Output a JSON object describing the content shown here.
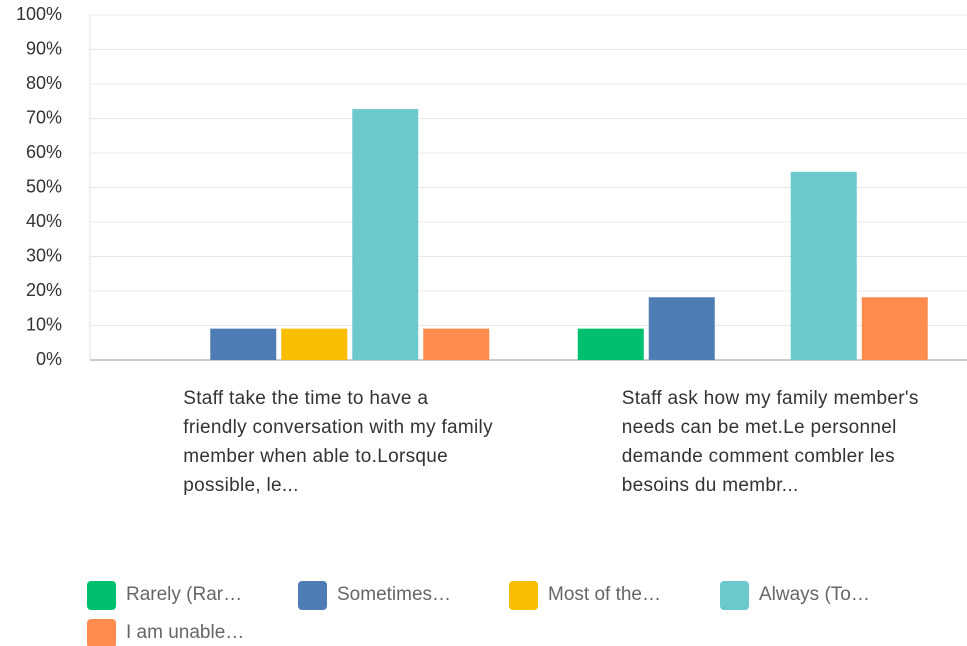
{
  "chart_data": {
    "type": "bar",
    "categories": [
      "Staff take the time to have a friendly conversation with my family member when able to.Lorsque possible, le...",
      "Staff ask how my family member's needs can be met.Le personnel demande comment combler les besoins du membr..."
    ],
    "series": [
      {
        "name": "Rarely (Rar…",
        "color": "#00bf6f",
        "values": [
          0,
          9.09
        ]
      },
      {
        "name": "Sometimes…",
        "color": "#507cb6",
        "values": [
          9.09,
          18.18
        ]
      },
      {
        "name": "Most of the…",
        "color": "#f9be00",
        "values": [
          9.09,
          0
        ]
      },
      {
        "name": "Always (To…",
        "color": "#6bc8cd",
        "values": [
          72.73,
          54.55
        ]
      },
      {
        "name": "I am unable…",
        "color": "#ff8b4f",
        "values": [
          9.09,
          18.18
        ]
      }
    ],
    "ylim": [
      0,
      100
    ],
    "yticks": [
      {
        "value": 0,
        "label": "0%"
      },
      {
        "value": 10,
        "label": "10%"
      },
      {
        "value": 20,
        "label": "20%"
      },
      {
        "value": 30,
        "label": "30%"
      },
      {
        "value": 40,
        "label": "40%"
      },
      {
        "value": 50,
        "label": "50%"
      },
      {
        "value": 60,
        "label": "60%"
      },
      {
        "value": 70,
        "label": "70%"
      },
      {
        "value": 80,
        "label": "80%"
      },
      {
        "value": 90,
        "label": "90%"
      },
      {
        "value": 100,
        "label": "100%"
      }
    ],
    "grid": true
  }
}
